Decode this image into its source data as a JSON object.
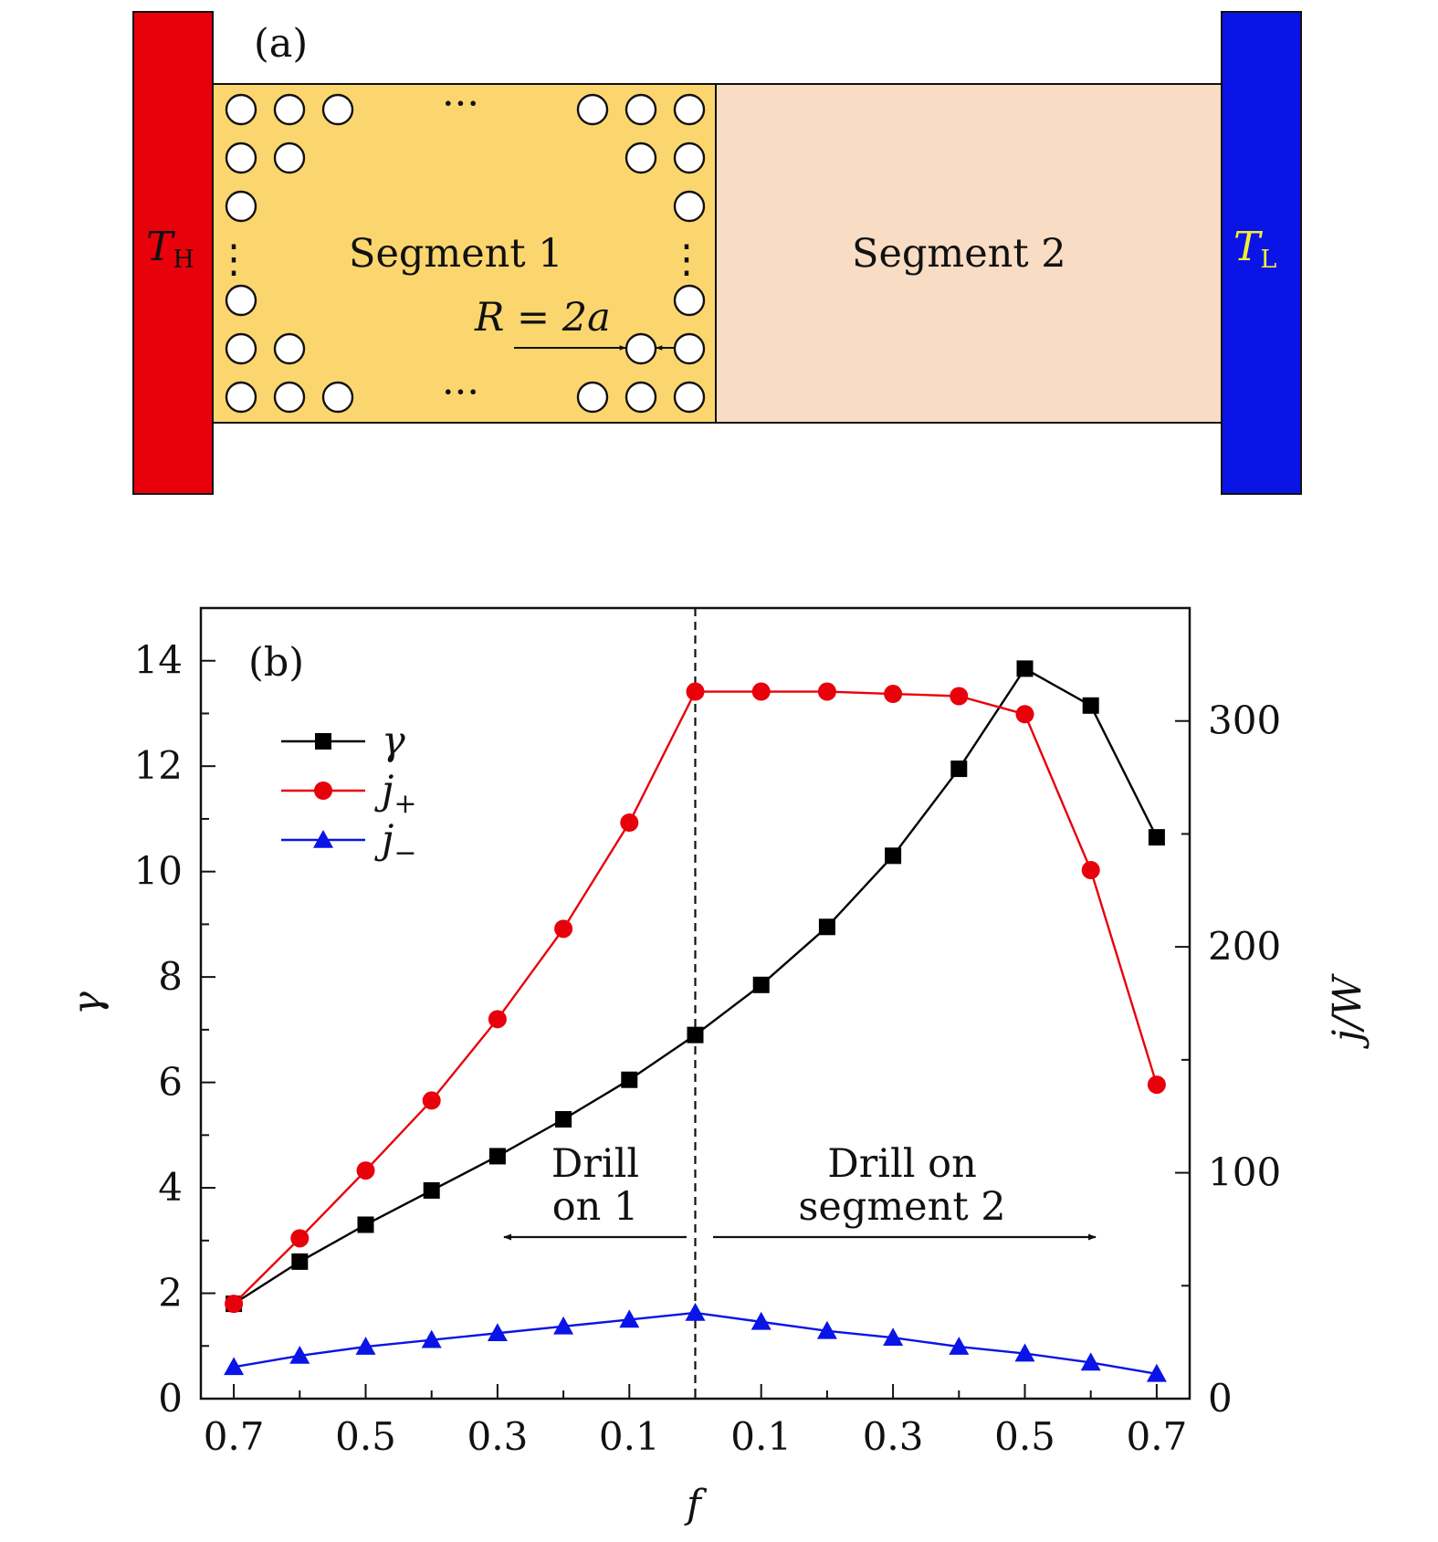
{
  "panel_a": {
    "label": "(a)",
    "hot_reservoir": {
      "symbol": "T",
      "subscript": "H",
      "color": "#e8000b"
    },
    "cold_reservoir": {
      "symbol": "T",
      "subscript": "L",
      "color": "#0a14e6"
    },
    "segment_1": {
      "label": "Segment 1",
      "color": "#fbd66e"
    },
    "segment_2": {
      "label": "Segment 2",
      "color": "#f8dcc3"
    },
    "dots_horizontal": "···",
    "dots_vertical": "⋮",
    "radius_label": "R = 2a"
  },
  "chart_data": {
    "type": "line",
    "panel_label": "(b)",
    "xlabel": "f",
    "ylabel_left": "γ",
    "ylabel_right": "j/W",
    "x_tick_labels": [
      "0.7",
      "0.5",
      "0.3",
      "0.1",
      "0.1",
      "0.3",
      "0.5",
      "0.7"
    ],
    "x_positions": [
      -0.7,
      -0.6,
      -0.5,
      -0.4,
      -0.3,
      -0.2,
      -0.1,
      0.0,
      0.1,
      0.2,
      0.3,
      0.4,
      0.5,
      0.6,
      0.7
    ],
    "xlim": [
      -0.75,
      0.75
    ],
    "y_left_lim": [
      0,
      15
    ],
    "y_left_ticks": [
      0,
      2,
      4,
      6,
      8,
      10,
      12,
      14
    ],
    "y_right_lim": [
      0,
      350
    ],
    "y_right_ticks": [
      0,
      100,
      200,
      300
    ],
    "divider_x": 0.0,
    "series": [
      {
        "name": "γ",
        "axis": "left",
        "color": "#000000",
        "marker": "square",
        "values": [
          1.8,
          2.6,
          3.3,
          3.95,
          4.6,
          5.3,
          6.05,
          6.9,
          7.85,
          8.95,
          10.3,
          11.95,
          13.85,
          13.15,
          10.65
        ]
      },
      {
        "name": "j+",
        "axis": "right",
        "color": "#e8000b",
        "marker": "circle",
        "values": [
          42,
          71,
          101,
          132,
          168,
          208,
          255,
          313,
          313,
          313,
          312,
          311,
          303,
          234,
          139
        ]
      },
      {
        "name": "j−",
        "axis": "right",
        "color": "#0a14e6",
        "marker": "triangle",
        "values": [
          14,
          19,
          23,
          26,
          29,
          32,
          35,
          38,
          34,
          30,
          27,
          23,
          20,
          16,
          11
        ]
      }
    ],
    "annotations": [
      {
        "text_lines": [
          "Drill",
          "on 1"
        ],
        "arrow": "left"
      },
      {
        "text_lines": [
          "Drill on",
          "segment 2"
        ],
        "arrow": "right"
      }
    ],
    "grid": false,
    "legend_position": "upper-left"
  }
}
